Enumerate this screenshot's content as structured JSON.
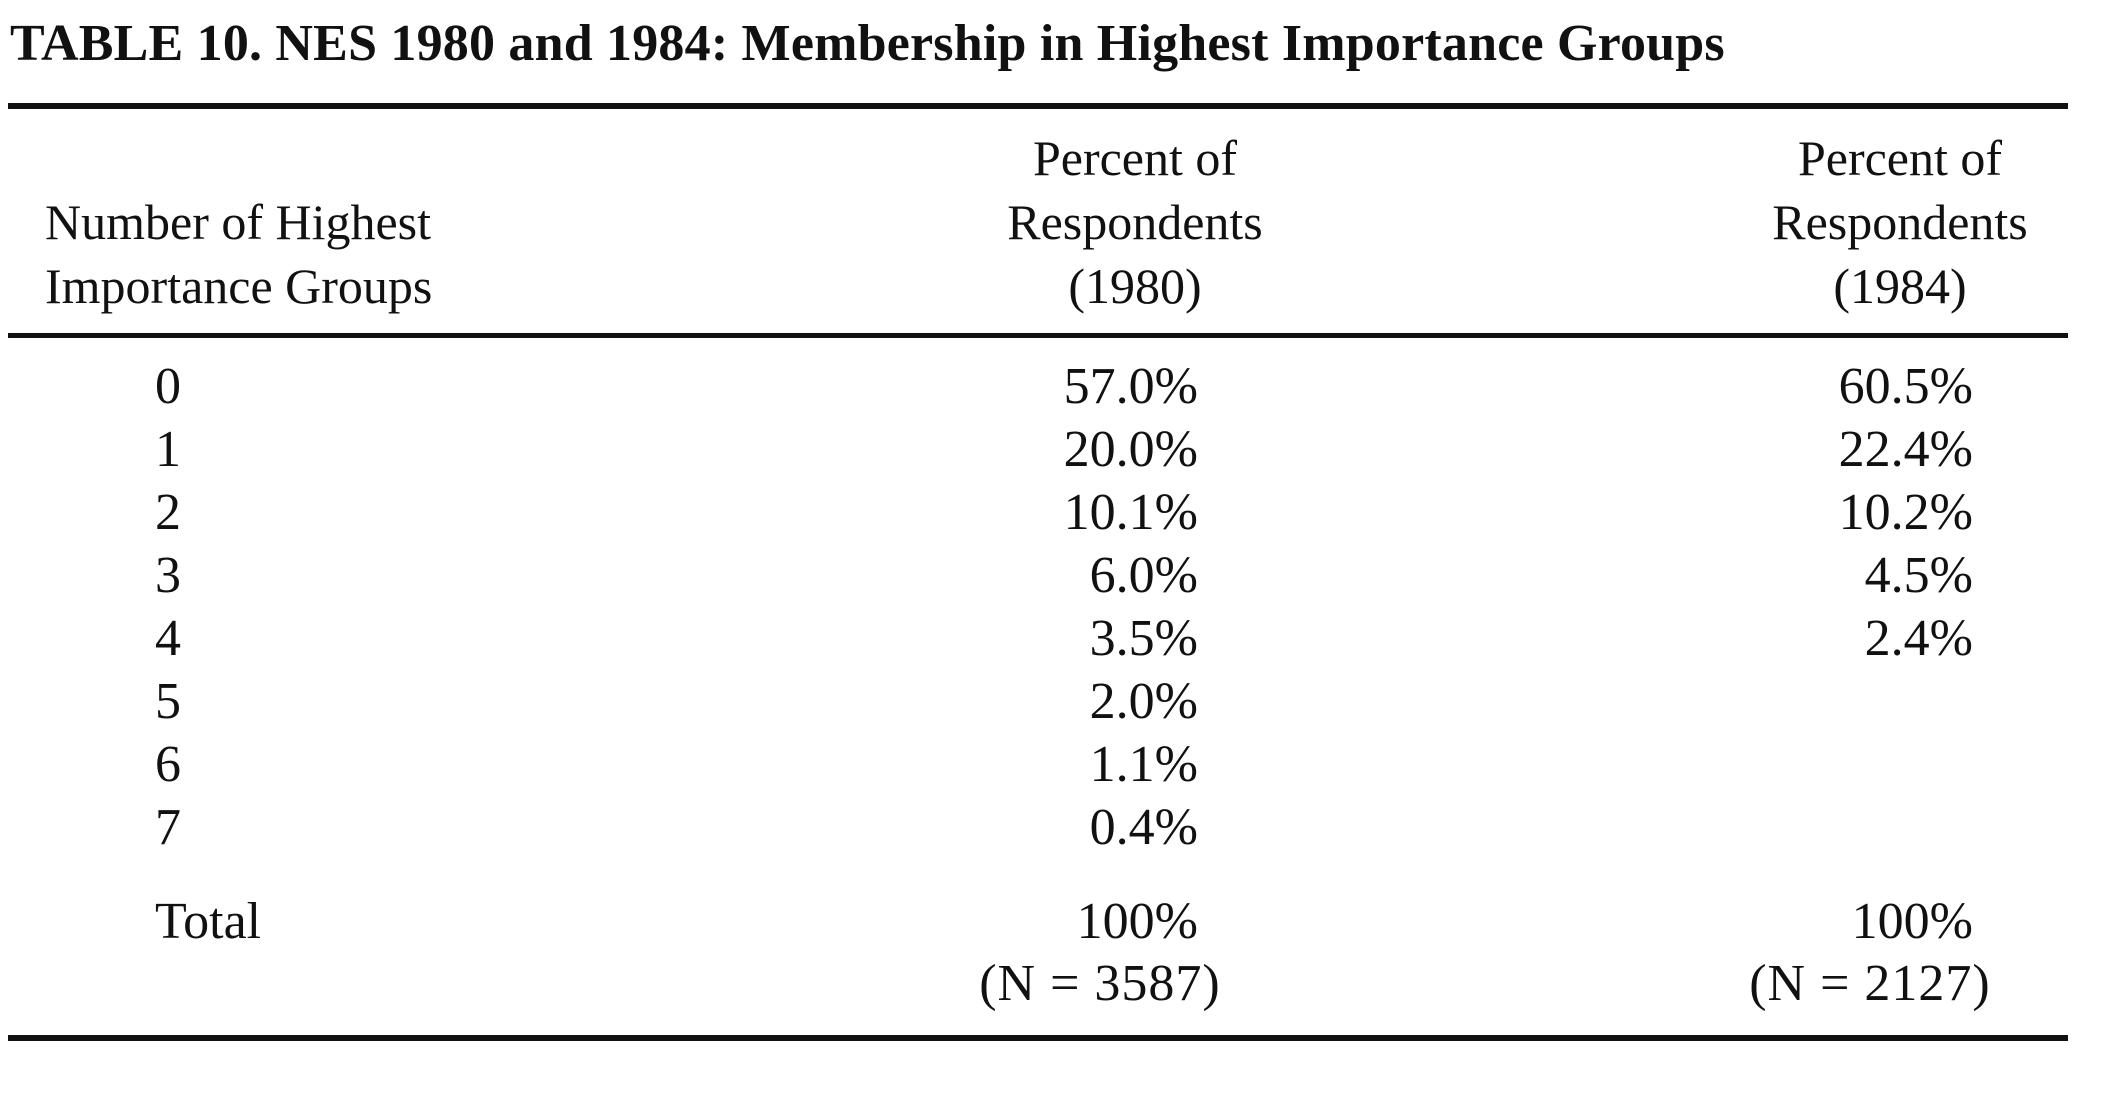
{
  "table": {
    "title": "TABLE  10.  NES 1980 and 1984: Membership in Highest Importance Groups",
    "header": {
      "left": [
        "Number of Highest",
        "Importance Groups"
      ],
      "col1980": [
        "Percent of",
        "Respondents",
        "(1980)"
      ],
      "col1984": [
        "Percent of",
        "Respondents",
        "(1984)"
      ]
    },
    "rows": [
      {
        "groups": "0",
        "pct1980": "57.0%",
        "pct1984": "60.5%"
      },
      {
        "groups": "1",
        "pct1980": "20.0%",
        "pct1984": "22.4%"
      },
      {
        "groups": "2",
        "pct1980": "10.1%",
        "pct1984": "10.2%"
      },
      {
        "groups": "3",
        "pct1980": "6.0%",
        "pct1984": "4.5%"
      },
      {
        "groups": "4",
        "pct1980": "3.5%",
        "pct1984": "2.4%"
      },
      {
        "groups": "5",
        "pct1980": "2.0%",
        "pct1984": ""
      },
      {
        "groups": "6",
        "pct1980": "1.1%",
        "pct1984": ""
      },
      {
        "groups": "7",
        "pct1980": "0.4%",
        "pct1984": ""
      }
    ],
    "total": {
      "label": "Total",
      "pct1980": "100%",
      "pct1984": "100%",
      "n1980": "(N  =  3587)",
      "n1984": "(N  =  2127)"
    }
  }
}
